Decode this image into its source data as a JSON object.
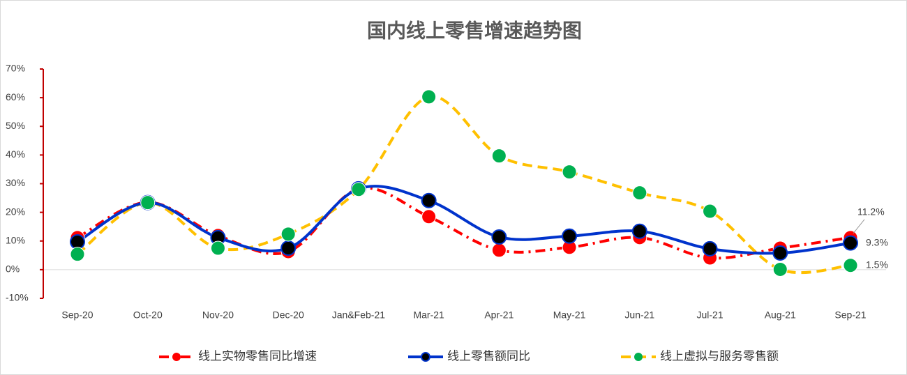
{
  "chart_data": {
    "type": "line",
    "title": "国内线上零售增速趋势图",
    "categories": [
      "Sep-20",
      "Oct-20",
      "Nov-20",
      "Dec-20",
      "Jan&Feb-21",
      "Mar-21",
      "Apr-21",
      "May-21",
      "Jun-21",
      "Jul-21",
      "Aug-21",
      "Sep-21"
    ],
    "ylim": [
      -10,
      70
    ],
    "yticks": [
      {
        "value": -10,
        "label": "-10%"
      },
      {
        "value": 0,
        "label": "0%"
      },
      {
        "value": 10,
        "label": "10%"
      },
      {
        "value": 20,
        "label": "20%"
      },
      {
        "value": 30,
        "label": "30%"
      },
      {
        "value": 40,
        "label": "40%"
      },
      {
        "value": 50,
        "label": "50%"
      },
      {
        "value": 60,
        "label": "60%"
      },
      {
        "value": 70,
        "label": "70%"
      }
    ],
    "legend": "bottom",
    "series": [
      {
        "name": "线上实物零售同比增速",
        "color": "#ff0000",
        "style": "dashdot",
        "marker_fill": "#ff0000",
        "values": [
          11.2,
          23.5,
          11.9,
          6.3,
          28.2,
          18.5,
          6.8,
          7.8,
          11.2,
          4.1,
          7.5,
          11.2
        ],
        "value_labels": [
          null,
          null,
          null,
          null,
          null,
          null,
          null,
          null,
          null,
          null,
          null,
          "11.2%"
        ]
      },
      {
        "name": "线上零售额同比",
        "color": "#0033cc",
        "style": "solid",
        "marker_fill": "#000000",
        "values": [
          9.7,
          23.4,
          11.2,
          7.5,
          28.2,
          24.1,
          11.4,
          11.7,
          13.4,
          7.3,
          5.8,
          9.3
        ],
        "value_labels": [
          null,
          null,
          null,
          null,
          null,
          null,
          null,
          null,
          null,
          null,
          null,
          "9.3%"
        ]
      },
      {
        "name": "线上虚拟与服务零售额",
        "color": "#ffc000",
        "style": "dashed",
        "marker_fill": "#00b050",
        "values": [
          5.4,
          23.4,
          7.5,
          12.4,
          28.0,
          60.3,
          39.7,
          34.1,
          26.8,
          20.4,
          0.1,
          1.5
        ],
        "value_labels": [
          null,
          null,
          null,
          null,
          null,
          null,
          null,
          null,
          null,
          null,
          null,
          "1.5%"
        ]
      }
    ]
  }
}
